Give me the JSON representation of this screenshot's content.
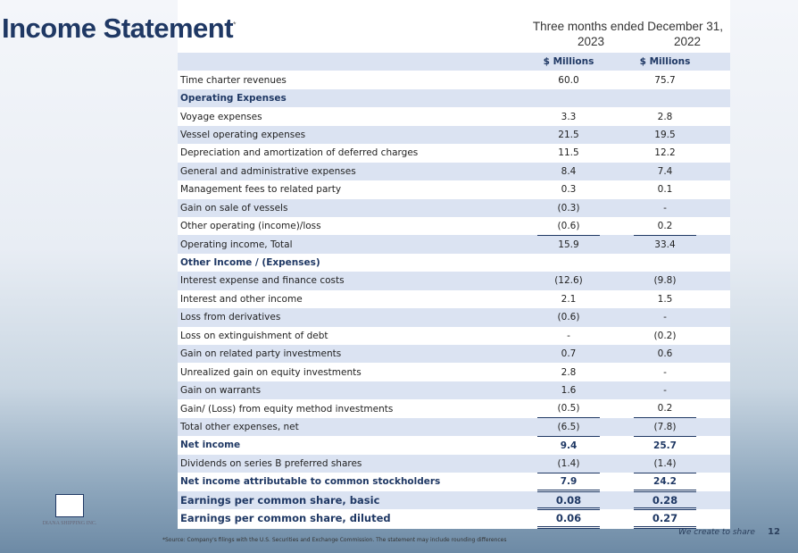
{
  "title": "Income Statement",
  "title_mark": "*",
  "period": "Three months ended December 31,",
  "years": [
    "2023",
    "2022"
  ],
  "units": [
    "$ Millions",
    "$ Millions"
  ],
  "rows": [
    {
      "label": "Time charter revenues",
      "v1": "60.0",
      "v2": "75.7"
    },
    {
      "label": "Operating Expenses",
      "v1": "",
      "v2": "",
      "bold": true
    },
    {
      "label": "Voyage expenses",
      "v1": "3.3",
      "v2": "2.8"
    },
    {
      "label": "Vessel operating expenses",
      "v1": "21.5",
      "v2": "19.5"
    },
    {
      "label": "Depreciation and amortization of deferred charges",
      "v1": "11.5",
      "v2": "12.2"
    },
    {
      "label": "General and administrative expenses",
      "v1": "8.4",
      "v2": "7.4"
    },
    {
      "label": "Management fees to related party",
      "v1": "0.3",
      "v2": "0.1"
    },
    {
      "label": "Gain on sale of vessels",
      "v1": "(0.3)",
      "v2": "-"
    },
    {
      "label": "Other operating (income)/loss",
      "v1": "(0.6)",
      "v2": "0.2",
      "ul": true
    },
    {
      "label": "Operating income, Total",
      "v1": "15.9",
      "v2": "33.4"
    },
    {
      "label": "Other Income / (Expenses)",
      "v1": "",
      "v2": "",
      "bold": true
    },
    {
      "label": "Interest expense and finance costs",
      "v1": "(12.6)",
      "v2": "(9.8)"
    },
    {
      "label": "Interest and other income",
      "v1": "2.1",
      "v2": "1.5"
    },
    {
      "label": "Loss from derivatives",
      "v1": "(0.6)",
      "v2": "-"
    },
    {
      "label": "Loss on extinguishment of debt",
      "v1": "-",
      "v2": "(0.2)"
    },
    {
      "label": "Gain on related party investments",
      "v1": "0.7",
      "v2": "0.6"
    },
    {
      "label": "Unrealized gain on equity investments",
      "v1": "2.8",
      "v2": "-"
    },
    {
      "label": "Gain on warrants",
      "v1": "1.6",
      "v2": "-"
    },
    {
      "label": "Gain/ (Loss) from equity method investments",
      "v1": "(0.5)",
      "v2": "0.2",
      "ul": true
    },
    {
      "label": "Total other expenses, net",
      "v1": "(6.5)",
      "v2": "(7.8)",
      "ul": true
    },
    {
      "label": "Net income",
      "v1": "9.4",
      "v2": "25.7",
      "bold": true
    },
    {
      "label": "Dividends on series B preferred shares",
      "v1": "(1.4)",
      "v2": "(1.4)",
      "ul": true
    },
    {
      "label": "Net income attributable to common stockholders",
      "v1": "7.9",
      "v2": "24.2",
      "bold": true,
      "dul": true
    },
    {
      "label": "Earnings per common share, basic",
      "v1": "0.08",
      "v2": "0.28",
      "bold": true,
      "big": true,
      "dul": true
    },
    {
      "label": "Earnings per common share, diluted",
      "v1": "0.06",
      "v2": "0.27",
      "bold": true,
      "big": true,
      "dul": true
    }
  ],
  "logo_text": "DIANA SHIPPING INC.",
  "footnote": "*Source: Company's filings with the U.S. Securities and Exchange Commission. The statement may include rounding differences",
  "slogan": "We create to share",
  "page": "12"
}
